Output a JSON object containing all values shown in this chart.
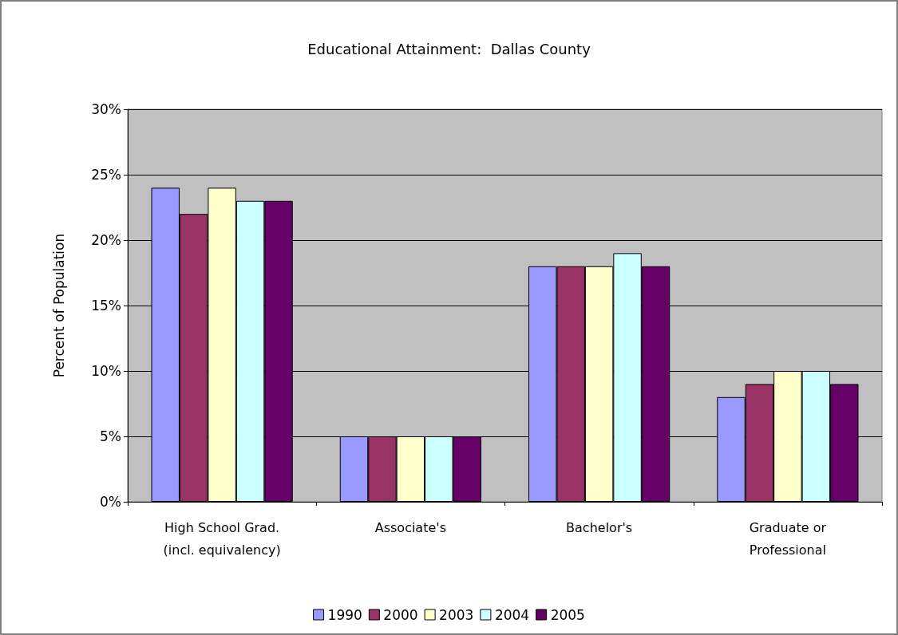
{
  "chart_data": {
    "type": "bar",
    "title": "Educational Attainment:  Dallas County",
    "ylabel": "Percent of Population",
    "categories": [
      "High School Grad.\n(incl. equivalency)",
      "Associate's",
      "Bachelor's",
      "Graduate or\nProfessional"
    ],
    "series": [
      {
        "name": "1990",
        "color": "#9999ff",
        "values": [
          24,
          5,
          18,
          8
        ]
      },
      {
        "name": "2000",
        "color": "#993366",
        "values": [
          22,
          5,
          18,
          9
        ]
      },
      {
        "name": "2003",
        "color": "#ffffcc",
        "values": [
          24,
          5,
          18,
          10
        ]
      },
      {
        "name": "2004",
        "color": "#ccffff",
        "values": [
          23,
          5,
          19,
          10
        ]
      },
      {
        "name": "2005",
        "color": "#660066",
        "values": [
          23,
          5,
          18,
          9
        ]
      }
    ],
    "ylim": [
      0,
      30
    ],
    "yticks": [
      {
        "value": 0,
        "label": "0%"
      },
      {
        "value": 5,
        "label": "5%"
      },
      {
        "value": 10,
        "label": "10%"
      },
      {
        "value": 15,
        "label": "15%"
      },
      {
        "value": 20,
        "label": "20%"
      },
      {
        "value": 25,
        "label": "25%"
      },
      {
        "value": 30,
        "label": "30%"
      }
    ],
    "grid": "y",
    "legend": "bottom"
  }
}
